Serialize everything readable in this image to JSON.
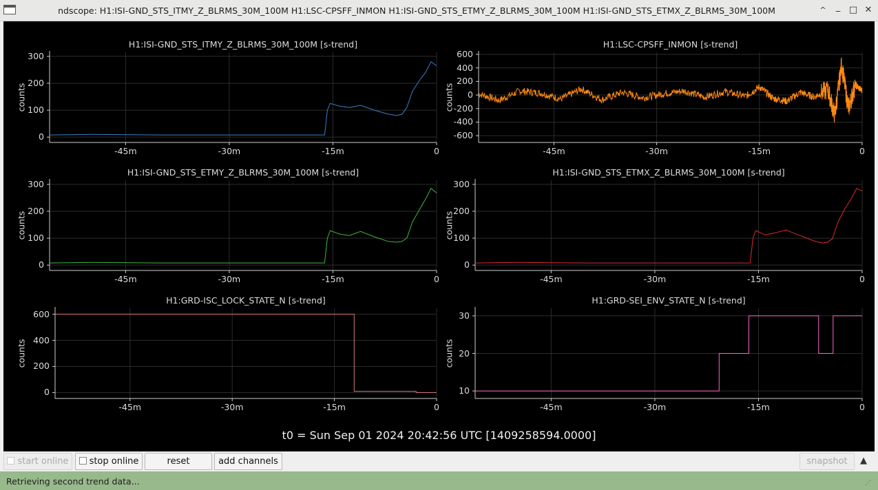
{
  "window": {
    "title": "ndscope: H1:ISI-GND_STS_ITMY_Z_BLRMS_30M_100M H1:LSC-CPSFF_INMON H1:ISI-GND_STS_ETMY_Z_BLRMS_30M_100M H1:ISI-GND_STS_ETMX_Z_BLRMS_30M_100M",
    "minimize_glyph": "_",
    "maximize_glyph": "□",
    "close_glyph": "✕",
    "shade_glyph": "^"
  },
  "plots": [
    {
      "id": "itmy",
      "title": "H1:ISI-GND_STS_ITMY_Z_BLRMS_30M_100M [s-trend]",
      "ylabel": "counts",
      "xticks": [
        "-45m",
        "-30m",
        "-15m",
        "0"
      ],
      "yticks": [
        "0",
        "100",
        "200",
        "300"
      ],
      "color": "#3d80c8"
    },
    {
      "id": "cpsff",
      "title": "H1:LSC-CPSFF_INMON [s-trend]",
      "ylabel": "counts",
      "xticks": [
        "-45m",
        "-30m",
        "-15m",
        "0"
      ],
      "yticks": [
        "-600",
        "-400",
        "-200",
        "0",
        "200",
        "400",
        "600"
      ],
      "color": "#ff8a14"
    },
    {
      "id": "etmy",
      "title": "H1:ISI-GND_STS_ETMY_Z_BLRMS_30M_100M [s-trend]",
      "ylabel": "counts",
      "xticks": [
        "-45m",
        "-30m",
        "-15m",
        "0"
      ],
      "yticks": [
        "0",
        "100",
        "200",
        "300"
      ],
      "color": "#3fb83f"
    },
    {
      "id": "etmx",
      "title": "H1:ISI-GND_STS_ETMX_Z_BLRMS_30M_100M [s-trend]",
      "ylabel": "counts",
      "xticks": [
        "-45m",
        "-30m",
        "-15m",
        "0"
      ],
      "yticks": [
        "0",
        "100",
        "200",
        "300"
      ],
      "color": "#e02a2a"
    },
    {
      "id": "lock",
      "title": "H1:GRD-ISC_LOCK_STATE_N [s-trend]",
      "ylabel": "counts",
      "xticks": [
        "-45m",
        "-30m",
        "-15m",
        "0"
      ],
      "yticks": [
        "0",
        "200",
        "400",
        "600"
      ],
      "color": "#d8787a"
    },
    {
      "id": "sei",
      "title": "H1:GRD-SEI_ENV_STATE_N [s-trend]",
      "ylabel": "counts",
      "xticks": [
        "-45m",
        "-30m",
        "-15m",
        "0"
      ],
      "yticks": [
        "10",
        "20",
        "30"
      ],
      "color": "#ff66cc"
    }
  ],
  "chart_data": [
    {
      "type": "line",
      "title": "H1:ISI-GND_STS_ITMY_Z_BLRMS_30M_100M [s-trend]",
      "ylabel": "counts",
      "xlim": [
        -56,
        0
      ],
      "ylim": [
        -20,
        315
      ],
      "series": [
        {
          "x": [
            -56,
            -50,
            -40,
            -30,
            -20,
            -16.2,
            -15.8,
            -15.4,
            -14,
            -12.6,
            -11,
            -9,
            -7,
            -5.7,
            -5,
            -4.3,
            -3.5,
            -2.5,
            -1.6,
            -0.8,
            0
          ],
          "y": [
            8,
            10,
            8,
            8,
            8,
            8,
            100,
            125,
            115,
            110,
            118,
            100,
            85,
            80,
            85,
            110,
            170,
            210,
            240,
            280,
            265
          ]
        }
      ]
    },
    {
      "type": "line",
      "title": "H1:LSC-CPSFF_INMON [s-trend]",
      "ylabel": "counts",
      "xlim": [
        -56,
        0
      ],
      "ylim": [
        -700,
        630
      ],
      "series": [
        {
          "x": [
            -56,
            -53,
            -50,
            -47,
            -44,
            -41,
            -38,
            -35,
            -32,
            -29,
            -26,
            -23,
            -20,
            -17,
            -15,
            -13,
            -11,
            -9,
            -7,
            -5,
            -4,
            -3,
            -2,
            -1,
            0
          ],
          "y": [
            20,
            -80,
            60,
            30,
            -60,
            90,
            -70,
            40,
            -40,
            20,
            60,
            -30,
            50,
            -20,
            120,
            -50,
            -90,
            40,
            -30,
            80,
            -300,
            450,
            -200,
            150,
            60
          ]
        }
      ]
    },
    {
      "type": "line",
      "title": "H1:ISI-GND_STS_ETMY_Z_BLRMS_30M_100M [s-trend]",
      "ylabel": "counts",
      "xlim": [
        -56,
        0
      ],
      "ylim": [
        -20,
        315
      ],
      "series": [
        {
          "x": [
            -56,
            -50,
            -40,
            -30,
            -20,
            -16.2,
            -15.8,
            -15.4,
            -14,
            -12.6,
            -11,
            -9,
            -7,
            -5.7,
            -5,
            -4.3,
            -3.5,
            -2.5,
            -1.6,
            -0.8,
            0
          ],
          "y": [
            8,
            10,
            8,
            8,
            8,
            8,
            100,
            128,
            115,
            110,
            125,
            105,
            88,
            85,
            88,
            100,
            160,
            205,
            245,
            285,
            268
          ]
        }
      ]
    },
    {
      "type": "line",
      "title": "H1:ISI-GND_STS_ETMX_Z_BLRMS_30M_100M [s-trend]",
      "ylabel": "counts",
      "xlim": [
        -56,
        0
      ],
      "ylim": [
        -20,
        315
      ],
      "series": [
        {
          "x": [
            -56,
            -50,
            -40,
            -30,
            -20,
            -16.2,
            -15.8,
            -15.4,
            -14,
            -12.6,
            -11,
            -9,
            -7,
            -5.7,
            -5,
            -4.3,
            -3.5,
            -2.5,
            -1.6,
            -0.8,
            0
          ],
          "y": [
            8,
            10,
            8,
            8,
            8,
            8,
            100,
            128,
            112,
            120,
            130,
            110,
            90,
            82,
            85,
            98,
            160,
            210,
            245,
            285,
            275
          ]
        }
      ]
    },
    {
      "type": "line",
      "title": "H1:GRD-ISC_LOCK_STATE_N [s-trend]",
      "ylabel": "counts",
      "xlim": [
        -56,
        0
      ],
      "ylim": [
        -45,
        645
      ],
      "series": [
        {
          "x": [
            -56,
            -12.1,
            -12.1,
            -3,
            -3,
            0
          ],
          "y": [
            600,
            600,
            10,
            10,
            0,
            0
          ]
        }
      ]
    },
    {
      "type": "line",
      "title": "H1:GRD-SEI_ENV_STATE_N [s-trend]",
      "ylabel": "counts",
      "xlim": [
        -56,
        0
      ],
      "ylim": [
        8,
        32
      ],
      "series": [
        {
          "x": [
            -56,
            -20.7,
            -20.7,
            -16.4,
            -16.4,
            -6.3,
            -6.3,
            -4.2,
            -4.2,
            0
          ],
          "y": [
            10,
            10,
            20,
            20,
            30,
            30,
            20,
            20,
            30,
            30
          ]
        }
      ]
    }
  ],
  "t0_label": "t0 = Sun Sep 01 2024 20:42:56 UTC [1409258594.0000]",
  "toolbar": {
    "start_online": "start online",
    "stop_online": "stop online",
    "reset": "reset",
    "add_channels": "add channels",
    "snapshot": "snapshot",
    "collapse_glyph": "▲"
  },
  "status": {
    "text": "Retrieving second trend data...",
    "grip_glyph": "⋰"
  }
}
